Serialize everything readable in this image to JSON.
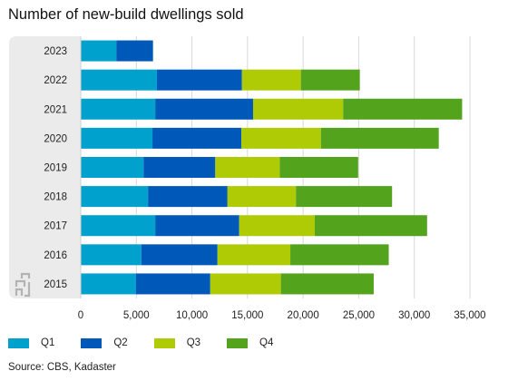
{
  "title": "Number of new-build dwellings sold",
  "source": "Source: CBS, Kadaster",
  "colors": {
    "q1": "#00a1cd",
    "q2": "#0058b8",
    "q3": "#afcb05",
    "q4": "#53a31d",
    "label_panel": "#ebebeb",
    "grid": "#d9d9d9"
  },
  "chart_data": {
    "type": "bar",
    "orientation": "horizontal",
    "stacked": true,
    "categories": [
      "2023",
      "2022",
      "2021",
      "2020",
      "2019",
      "2018",
      "2017",
      "2016",
      "2015"
    ],
    "series": [
      {
        "name": "Q1",
        "values": [
          3200,
          6850,
          6700,
          6450,
          5650,
          6050,
          6700,
          5450,
          4950
        ]
      },
      {
        "name": "Q2",
        "values": [
          3300,
          7650,
          8800,
          8000,
          6450,
          7150,
          7550,
          6850,
          6700
        ]
      },
      {
        "name": "Q3",
        "values": [
          0,
          5300,
          8100,
          7150,
          5800,
          6150,
          6800,
          6550,
          6350
        ]
      },
      {
        "name": "Q4",
        "values": [
          0,
          5300,
          10700,
          10600,
          7050,
          8650,
          10100,
          8850,
          8350
        ]
      }
    ],
    "xlim": [
      0,
      35000
    ],
    "xticks": [
      0,
      5000,
      10000,
      15000,
      20000,
      25000,
      30000,
      35000
    ],
    "xtick_labels": [
      "0",
      "5,000",
      "10,000",
      "15,000",
      "20,000",
      "25,000",
      "30,000",
      "35,000"
    ],
    "grid": true,
    "legend_position": "bottom-left",
    "xlabel": "",
    "ylabel": ""
  }
}
